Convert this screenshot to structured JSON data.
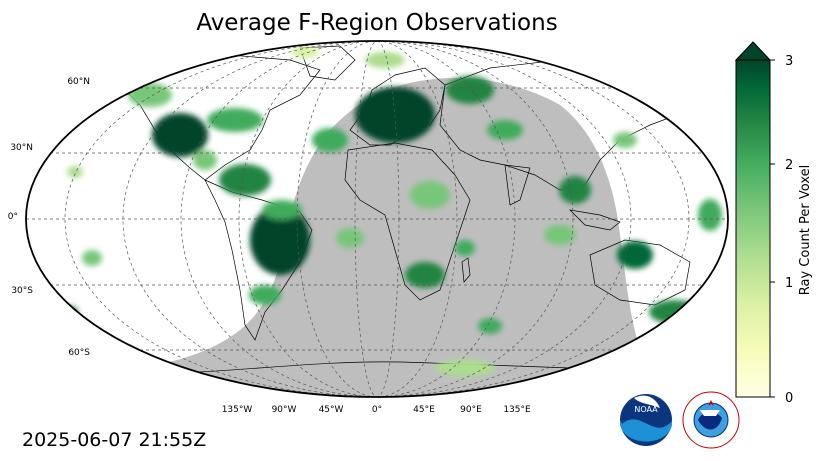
{
  "title": "Average F-Region Observations",
  "timestamp": "2025-06-07 21:55Z",
  "latitude_labels": [
    "60°N",
    "30°N",
    "0°",
    "30°S",
    "60°S"
  ],
  "longitude_labels": [
    "135°W",
    "90°W",
    "45°W",
    "0°",
    "45°E",
    "90°E",
    "135°E"
  ],
  "colorbar": {
    "label": "Ray Count Per Voxel",
    "ticks": [
      "0",
      "1",
      "2",
      "3"
    ],
    "min": 0,
    "max": 3,
    "extend": "max",
    "colormap": "YlGn",
    "colors": [
      "#ffffe5",
      "#f7fcb9",
      "#d9f0a3",
      "#addd8e",
      "#78c679",
      "#41ab5d",
      "#238443",
      "#006837",
      "#004529"
    ]
  },
  "map": {
    "projection": "Robinson",
    "night_shade_color": "#bebebe",
    "land_outline_color": "#000000",
    "gridline_style": "dotted"
  },
  "logos": {
    "noaa": "NOAA",
    "nws": "NATIONAL WEATHER SERVICE"
  }
}
